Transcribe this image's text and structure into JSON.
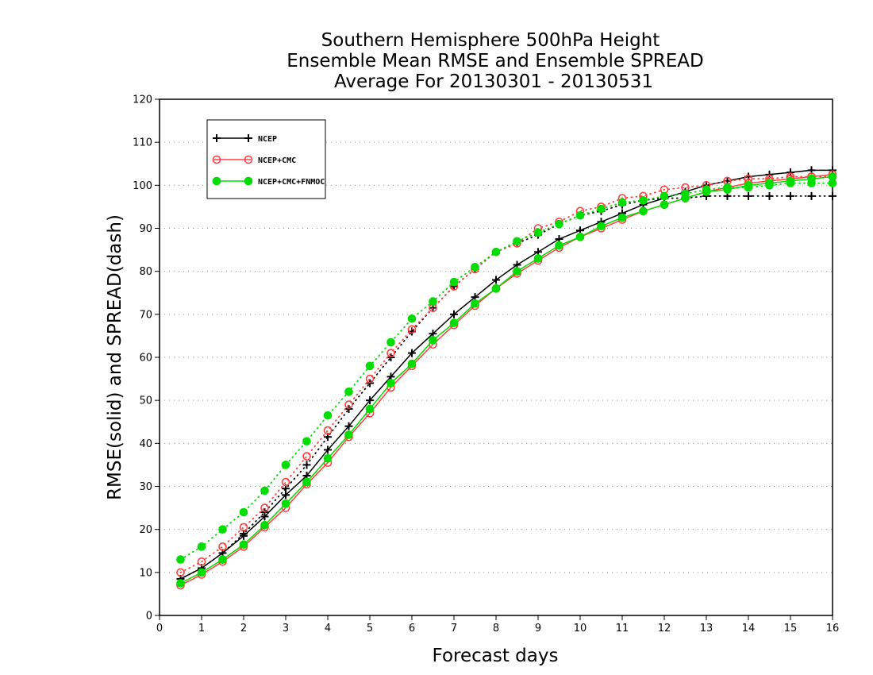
{
  "chart_data": {
    "type": "line",
    "title": [
      "Southern Hemisphere 500hPa Height",
      "Ensemble Mean RMSE and Ensemble SPREAD",
      "Average For 20130301 - 20130531"
    ],
    "xlabel": "Forecast days",
    "ylabel": "RMSE(solid) and SPREAD(dash)",
    "xlim": [
      0,
      16
    ],
    "ylim": [
      0,
      120
    ],
    "xticks": [
      0,
      1,
      2,
      3,
      4,
      5,
      6,
      7,
      8,
      9,
      10,
      11,
      12,
      13,
      14,
      15,
      16
    ],
    "yticks": [
      0,
      10,
      20,
      30,
      40,
      50,
      60,
      70,
      80,
      90,
      100,
      110,
      120
    ],
    "grid": "horizontal dotted",
    "legend_position": "top-left",
    "x": [
      0.5,
      1,
      1.5,
      2,
      2.5,
      3,
      3.5,
      4,
      4.5,
      5,
      5.5,
      6,
      6.5,
      7,
      7.5,
      8,
      8.5,
      9,
      9.5,
      10,
      10.5,
      11,
      11.5,
      12,
      12.5,
      13,
      13.5,
      14,
      14.5,
      15,
      15.5,
      16
    ],
    "series": [
      {
        "name": "NCEP",
        "color": "#000000",
        "marker": "plus",
        "rmse": [
          8.5,
          11,
          14.5,
          18.5,
          23,
          28,
          32.5,
          38.5,
          44,
          50,
          55.5,
          61,
          65.5,
          70,
          74,
          78,
          81.5,
          84.5,
          87.5,
          89.5,
          91.5,
          93.5,
          95.5,
          97,
          98.5,
          100,
          101,
          102,
          102.5,
          103,
          103.5,
          103.5
        ],
        "spread": [
          8.5,
          11,
          14.5,
          19,
          24,
          29.5,
          35,
          41.5,
          48,
          54,
          60,
          66,
          71.5,
          76.5,
          80.5,
          84.5,
          86.5,
          88.5,
          91,
          93,
          94,
          95.5,
          96.5,
          97,
          97,
          97.5,
          97.5,
          97.5,
          97.5,
          97.5,
          97.5,
          97.5
        ]
      },
      {
        "name": "NCEP+CMC",
        "color": "#ff4040",
        "marker": "open-circle",
        "rmse": [
          7,
          9.5,
          12.5,
          16,
          20.5,
          25,
          30.5,
          35.5,
          41.5,
          47,
          53,
          58,
          63,
          67.5,
          72,
          76,
          79.5,
          82.5,
          85.5,
          88,
          90,
          92,
          94,
          95.5,
          97,
          98.5,
          99.5,
          100.5,
          101,
          101.5,
          102,
          102.5
        ],
        "spread": [
          10,
          12.5,
          16,
          20.5,
          25,
          31,
          37,
          43,
          49,
          55,
          61,
          66.5,
          71.5,
          76.5,
          80.5,
          84.5,
          86.5,
          90,
          91.5,
          94,
          95,
          97,
          97.5,
          99,
          99.5,
          100,
          101,
          101.5,
          101.5,
          102,
          102,
          102
        ]
      },
      {
        "name": "NCEP+CMC+FNMOC",
        "color": "#00dd00",
        "marker": "filled-circle",
        "rmse": [
          7.5,
          10,
          13,
          16.5,
          21,
          26,
          31,
          36.5,
          42,
          48,
          54,
          58.5,
          64,
          68,
          72.5,
          76,
          80,
          83,
          86,
          88,
          90.5,
          92.5,
          94,
          95.5,
          97,
          98.5,
          99,
          100,
          100.5,
          101,
          101.5,
          102
        ],
        "spread": [
          13,
          16,
          20,
          24,
          29,
          35,
          40.5,
          46.5,
          52,
          58,
          63.5,
          69,
          73,
          77.5,
          81,
          84.5,
          87,
          89,
          91,
          93,
          94.5,
          96,
          96.5,
          97.5,
          98,
          99,
          99.5,
          99.5,
          100,
          100.5,
          100.5,
          100.5
        ]
      }
    ]
  }
}
